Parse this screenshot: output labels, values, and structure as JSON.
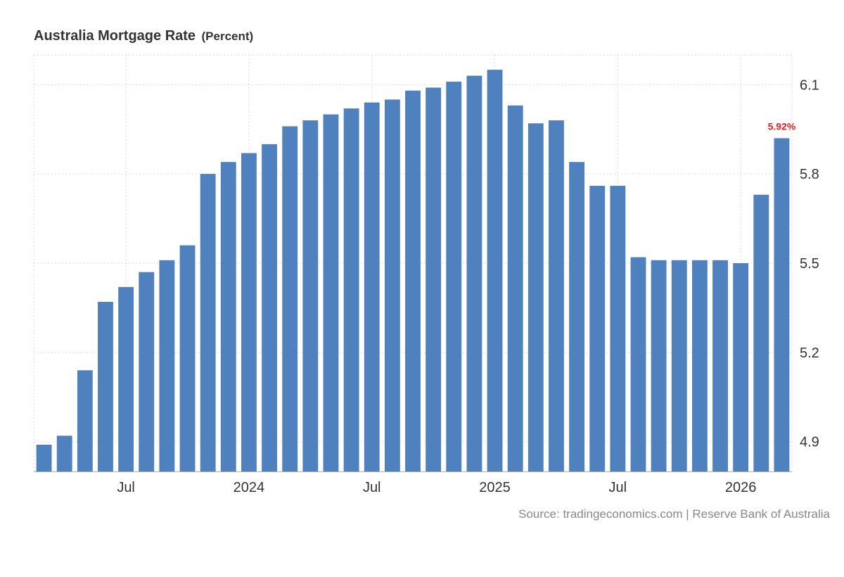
{
  "header": {
    "title": "Australia Mortgage Rate",
    "unit": "(Percent)"
  },
  "footer": {
    "source": "Source: tradingeconomics.com | Reserve Bank of Australia"
  },
  "colors": {
    "bar": "#4e81bd",
    "last_label": "#e51c23",
    "grid": "#d9d9d9",
    "text": "#333333",
    "source_text": "#888888"
  },
  "chart_data": {
    "type": "bar",
    "title": "Australia Mortgage Rate",
    "ylabel": "Percent",
    "ylim": [
      4.8,
      6.2
    ],
    "y_ticks": [
      4.9,
      5.2,
      5.5,
      5.8,
      6.1
    ],
    "y_axis_side": "right",
    "grid": true,
    "x_tick_labels": [
      {
        "label": "Jul",
        "at_index": 4
      },
      {
        "label": "2024",
        "at_index": 10
      },
      {
        "label": "Jul",
        "at_index": 16
      },
      {
        "label": "2025",
        "at_index": 22
      },
      {
        "label": "Jul",
        "at_index": 28
      },
      {
        "label": "2026",
        "at_index": 34
      }
    ],
    "values": [
      4.89,
      4.92,
      5.14,
      5.37,
      5.42,
      5.47,
      5.51,
      5.56,
      5.8,
      5.84,
      5.87,
      5.9,
      5.96,
      5.98,
      6.0,
      6.02,
      6.04,
      6.05,
      6.08,
      6.09,
      6.11,
      6.13,
      6.15,
      6.03,
      5.97,
      5.98,
      5.84,
      5.76,
      5.76,
      5.52,
      5.51,
      5.51,
      5.51,
      5.51,
      5.5,
      5.73,
      5.92
    ],
    "last_value_label": "5.92%"
  }
}
